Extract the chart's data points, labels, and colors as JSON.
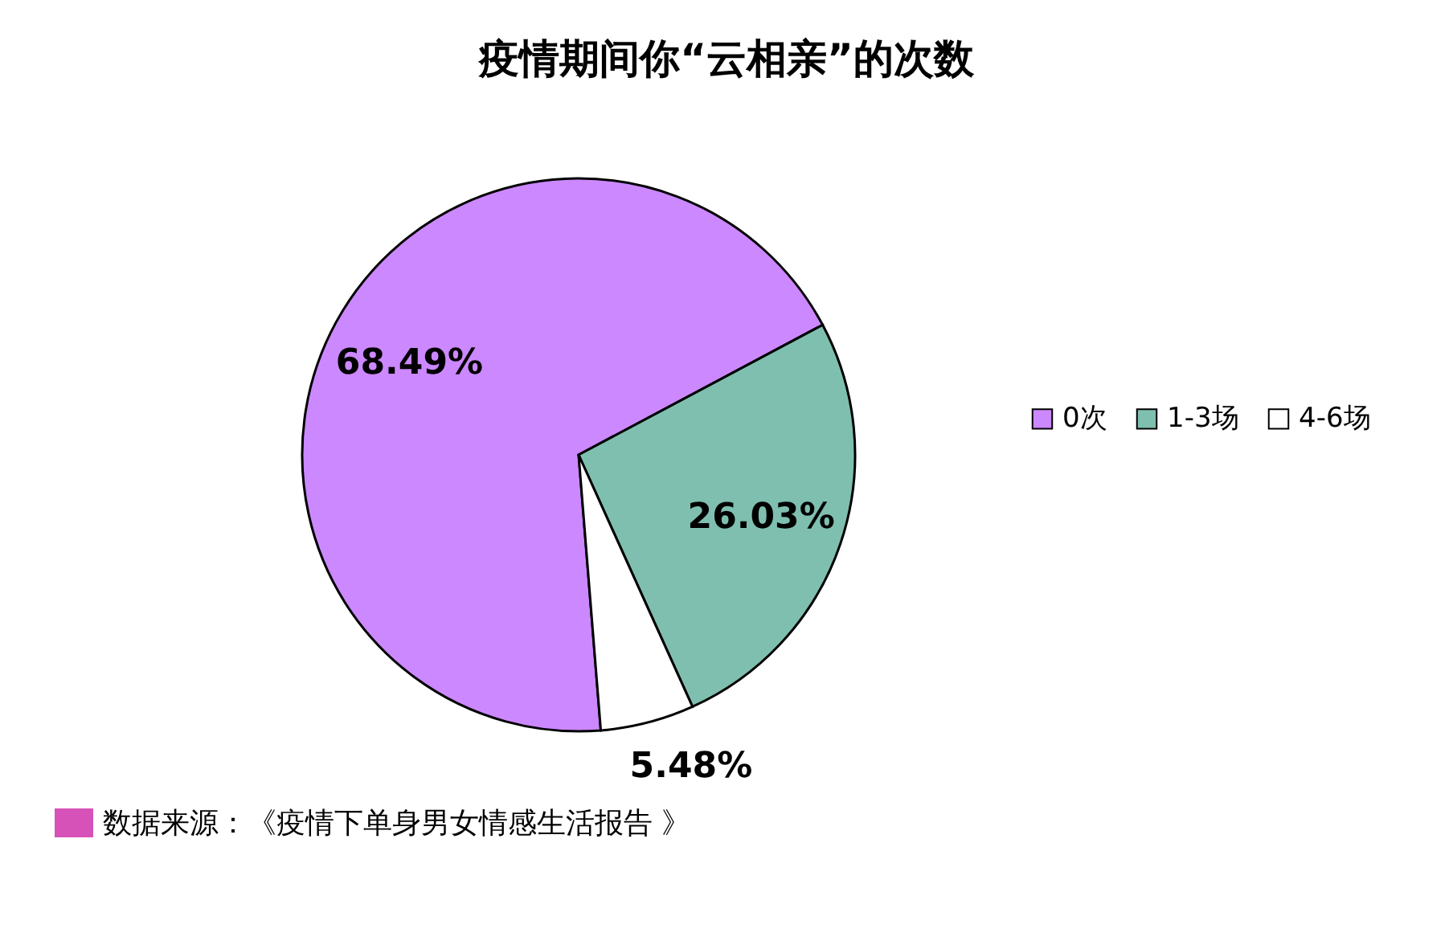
{
  "chart_data": {
    "type": "pie",
    "title": "疫情期间你“云相亲”的次数",
    "categories": [
      "0次",
      "1-3场",
      "4-6场"
    ],
    "values": [
      68.49,
      26.03,
      5.48
    ],
    "colors": [
      "#cc88ff",
      "#7fbfb0",
      "#ffffff"
    ],
    "value_labels": [
      "68.49%",
      "26.03%",
      "5.48%"
    ],
    "legend": "right",
    "annotations": [
      "数据来源：《疫情下单身男女情感生活报告 》"
    ]
  }
}
